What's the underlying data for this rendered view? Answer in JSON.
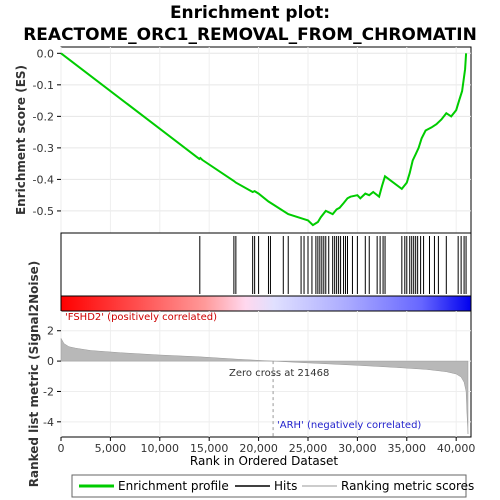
{
  "chart_data": {
    "type": "line",
    "title_line1": "Enrichment plot:",
    "title_line2": "REACTOME_ORC1_REMOVAL_FROM_CHROMATIN",
    "ylabel_top": "Enrichment score (ES)",
    "ylabel_bottom": "Ranked list metric (Signal2Noise)",
    "xlabel": "Rank in Ordered Dataset",
    "xlim": [
      0,
      41500
    ],
    "es_ylim": [
      -0.57,
      0.02
    ],
    "es_yticks": [
      "0.0",
      "-0.1",
      "-0.2",
      "-0.3",
      "-0.4",
      "-0.5"
    ],
    "es_ytick_values": [
      0.0,
      -0.1,
      -0.2,
      -0.3,
      -0.4,
      -0.5
    ],
    "metric_ylim": [
      -5,
      3.3
    ],
    "metric_yticks": [
      "2",
      "0",
      "-2",
      "-4"
    ],
    "metric_ytick_values": [
      2,
      0,
      -2,
      -4
    ],
    "xticks": [
      "0",
      "5,000",
      "10,000",
      "15,000",
      "20,000",
      "25,000",
      "30,000",
      "35,000",
      "40,000"
    ],
    "xtick_values": [
      0,
      5000,
      10000,
      15000,
      20000,
      25000,
      30000,
      35000,
      40000
    ],
    "enrichment_color": "#00cc00",
    "es_curve": {
      "x": [
        0,
        14000,
        14100,
        14300,
        17500,
        17700,
        19400,
        19600,
        20000,
        21000,
        21500,
        23000,
        24500,
        25000,
        25500,
        26000,
        26300,
        26800,
        27500,
        27900,
        28200,
        28600,
        29000,
        29300,
        30000,
        30300,
        30800,
        31200,
        31600,
        32200,
        32500,
        32800,
        34500,
        35000,
        35300,
        35600,
        35900,
        36200,
        36500,
        36900,
        37500,
        38000,
        38500,
        39000,
        39500,
        40000,
        40300,
        40600,
        40900,
        41000
      ],
      "y": [
        0.0,
        -0.335,
        -0.332,
        -0.338,
        -0.405,
        -0.41,
        -0.44,
        -0.437,
        -0.445,
        -0.47,
        -0.48,
        -0.51,
        -0.525,
        -0.53,
        -0.545,
        -0.535,
        -0.52,
        -0.5,
        -0.51,
        -0.495,
        -0.49,
        -0.475,
        -0.46,
        -0.455,
        -0.45,
        -0.46,
        -0.445,
        -0.45,
        -0.44,
        -0.455,
        -0.42,
        -0.39,
        -0.43,
        -0.41,
        -0.38,
        -0.34,
        -0.32,
        -0.3,
        -0.27,
        -0.245,
        -0.235,
        -0.225,
        -0.21,
        -0.19,
        -0.2,
        -0.18,
        -0.15,
        -0.12,
        -0.05,
        0.0
      ]
    },
    "hits": [
      14050,
      17500,
      17700,
      19400,
      19600,
      20000,
      21000,
      21200,
      22500,
      23000,
      24300,
      24600,
      25000,
      25400,
      25800,
      26000,
      26200,
      26400,
      26600,
      26800,
      27100,
      27500,
      27700,
      27900,
      28100,
      28300,
      28600,
      28800,
      29000,
      29500,
      30000,
      30800,
      31200,
      32000,
      32300,
      32600,
      32800,
      34500,
      34800,
      35000,
      35300,
      35500,
      35700,
      35900,
      36100,
      36400,
      36700,
      37300,
      37800,
      38200,
      39000,
      40200,
      40500,
      40800,
      41000
    ],
    "metric_profile": {
      "x": [
        0,
        300,
        800,
        1500,
        3000,
        6000,
        10000,
        14000,
        18000,
        21468,
        25000,
        30000,
        34000,
        37000,
        39000,
        40000,
        40500,
        40800,
        41000,
        41100,
        41200
      ],
      "y": [
        1.5,
        1.15,
        0.95,
        0.85,
        0.7,
        0.55,
        0.4,
        0.28,
        0.12,
        0.0,
        -0.12,
        -0.28,
        -0.42,
        -0.55,
        -0.7,
        -0.85,
        -1.05,
        -1.4,
        -2.0,
        -3.5,
        -4.8
      ]
    },
    "annotations": {
      "positive": "'FSHD2' (positively correlated)",
      "negative": "'ARH' (negatively correlated)",
      "zero_cross": "Zero cross at 21468",
      "zero_cross_value": 21468
    },
    "legend": {
      "items": [
        {
          "label": "Enrichment profile",
          "color": "#00cc00"
        },
        {
          "label": "Hits",
          "color": "#000000"
        },
        {
          "label": "Ranking metric scores",
          "color": "#bbbbbb"
        }
      ]
    },
    "heat_colors": {
      "positive": "#ff0000",
      "negative": "#0000ff"
    }
  }
}
